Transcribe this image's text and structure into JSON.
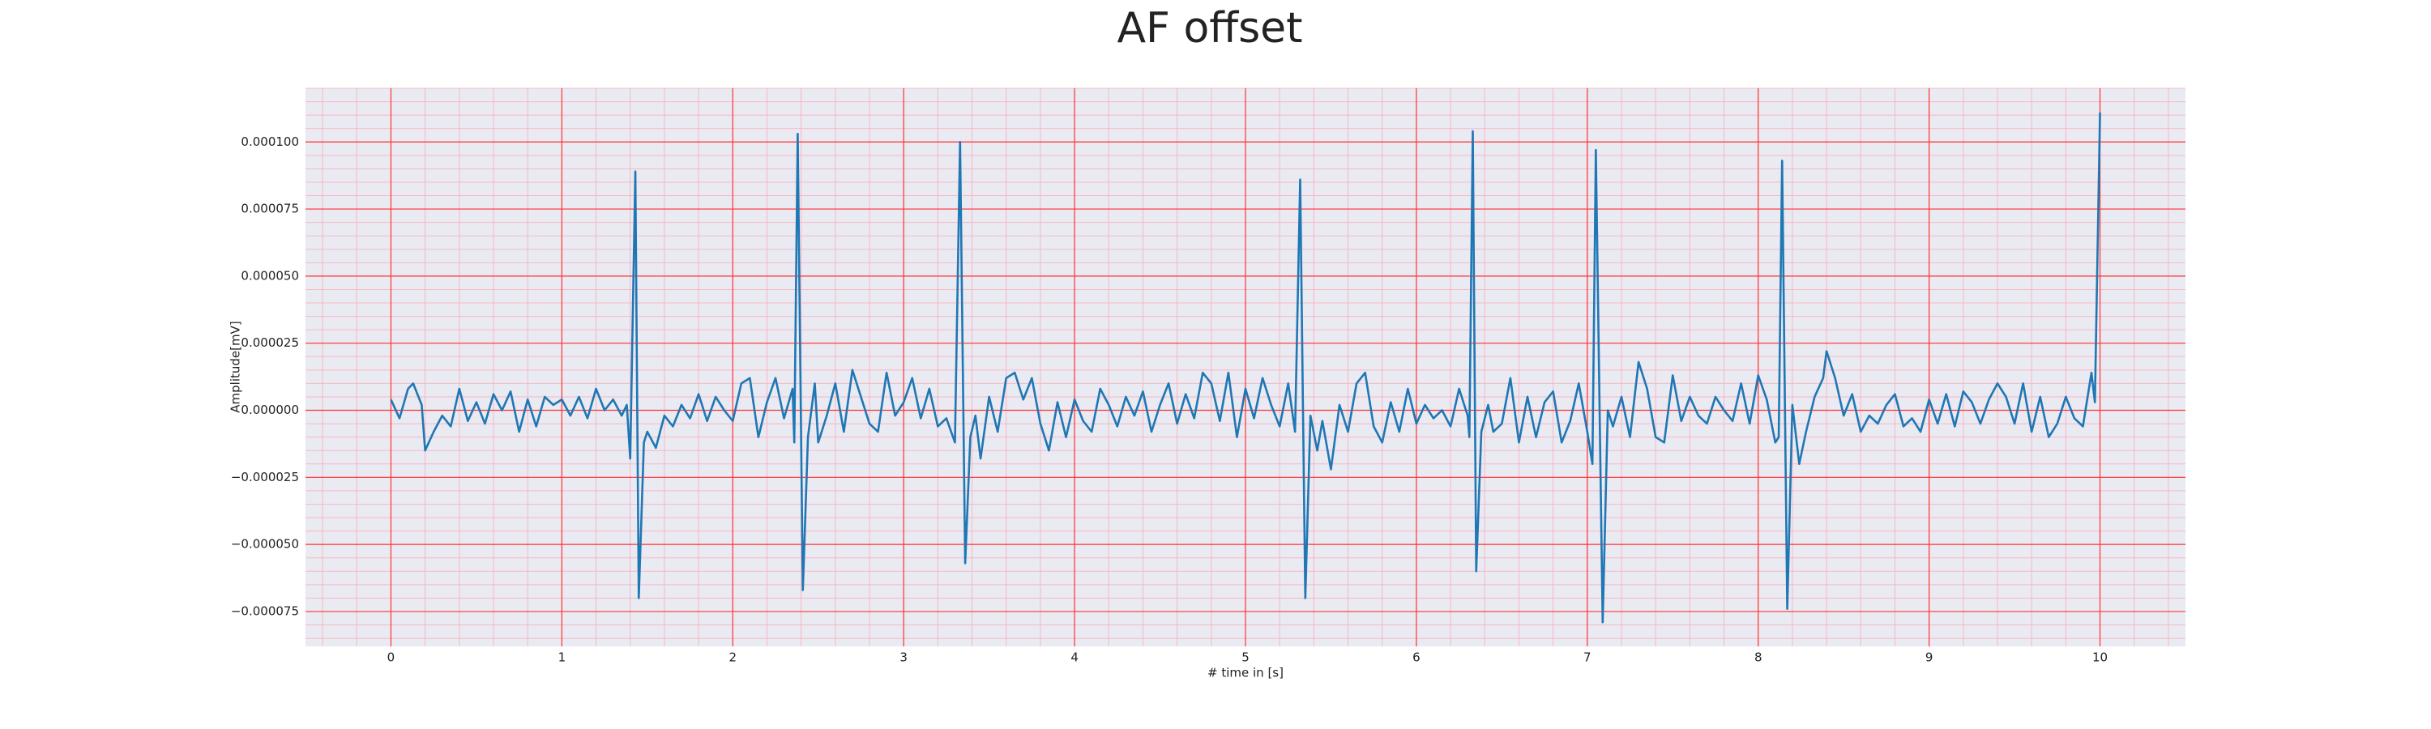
{
  "chart_data": {
    "type": "line",
    "title": "AF offset",
    "xlabel": "# time in [s]",
    "ylabel": "Amplitude[mV]",
    "color": "#1f77b4",
    "grid": true,
    "grid_color": "#ff3333",
    "minor_grid_color": "#f6b8c4",
    "background": "#eaeaf2",
    "xlim": [
      -0.5,
      10.5
    ],
    "ylim": [
      -8.8e-05,
      0.00012
    ],
    "xticks": [
      0,
      1,
      2,
      3,
      4,
      5,
      6,
      7,
      8,
      9,
      10
    ],
    "yticks": [
      {
        "value": -7.5e-05,
        "label": "−0.000075"
      },
      {
        "value": -5e-05,
        "label": "−0.000050"
      },
      {
        "value": -2.5e-05,
        "label": "−0.000025"
      },
      {
        "value": 0,
        "label": "0.000000"
      },
      {
        "value": 2.5e-05,
        "label": "0.000025"
      },
      {
        "value": 5e-05,
        "label": "0.000050"
      },
      {
        "value": 7.5e-05,
        "label": "0.000075"
      },
      {
        "value": 0.0001,
        "label": "0.000100"
      }
    ],
    "xminorticks": [
      -0.4,
      -0.2,
      0,
      0.2,
      0.4,
      0.6,
      0.8,
      1,
      1.2,
      1.4,
      1.6,
      1.8,
      2,
      2.2,
      2.4,
      2.6,
      2.8,
      3,
      3.2,
      3.4,
      3.6,
      3.8,
      4,
      4.2,
      4.4,
      4.6,
      4.8,
      5,
      5.2,
      5.4,
      5.6,
      5.8,
      6,
      6.2,
      6.4,
      6.6,
      6.8,
      7,
      7.2,
      7.4,
      7.6,
      7.8,
      8,
      8.2,
      8.4,
      8.6,
      8.8,
      9,
      9.2,
      9.4,
      9.6,
      9.8,
      10,
      10.2,
      10.4
    ],
    "yminorticks": [
      -8.5e-05,
      -8e-05,
      -7.5e-05,
      -7e-05,
      -6.5e-05,
      -6e-05,
      -5.5e-05,
      -5e-05,
      -4.5e-05,
      -4e-05,
      -3.5e-05,
      -3e-05,
      -2.5e-05,
      -2e-05,
      -1.5e-05,
      -1e-05,
      -5e-06,
      0,
      5e-06,
      1e-05,
      1.5e-05,
      2e-05,
      2.5e-05,
      3e-05,
      3.5e-05,
      4e-05,
      4.5e-05,
      5e-05,
      5.5e-05,
      6e-05,
      6.5e-05,
      7e-05,
      7.5e-05,
      8e-05,
      8.5e-05,
      9e-05,
      9.5e-05,
      0.0001,
      0.000105,
      0.00011,
      0.000115,
      0.00012
    ],
    "x": [
      0,
      0.05,
      0.1,
      0.13,
      0.18,
      0.2,
      0.25,
      0.3,
      0.35,
      0.4,
      0.45,
      0.5,
      0.55,
      0.6,
      0.65,
      0.7,
      0.75,
      0.8,
      0.85,
      0.9,
      0.95,
      1,
      1.05,
      1.1,
      1.15,
      1.2,
      1.25,
      1.3,
      1.35,
      1.38,
      1.4,
      1.43,
      1.45,
      1.48,
      1.5,
      1.55,
      1.6,
      1.65,
      1.7,
      1.75,
      1.8,
      1.85,
      1.9,
      1.95,
      2,
      2.05,
      2.1,
      2.15,
      2.2,
      2.25,
      2.3,
      2.35,
      2.36,
      2.38,
      2.41,
      2.44,
      2.48,
      2.5,
      2.55,
      2.6,
      2.65,
      2.7,
      2.75,
      2.8,
      2.85,
      2.9,
      2.95,
      3,
      3.05,
      3.1,
      3.15,
      3.2,
      3.25,
      3.3,
      3.33,
      3.36,
      3.39,
      3.42,
      3.45,
      3.5,
      3.55,
      3.6,
      3.65,
      3.7,
      3.75,
      3.8,
      3.85,
      3.9,
      3.95,
      4,
      4.05,
      4.1,
      4.15,
      4.2,
      4.25,
      4.3,
      4.35,
      4.4,
      4.45,
      4.5,
      4.55,
      4.6,
      4.65,
      4.7,
      4.75,
      4.8,
      4.85,
      4.9,
      4.95,
      5,
      5.05,
      5.1,
      5.15,
      5.2,
      5.25,
      5.29,
      5.32,
      5.35,
      5.38,
      5.42,
      5.45,
      5.5,
      5.55,
      5.6,
      5.65,
      5.7,
      5.75,
      5.8,
      5.85,
      5.9,
      5.95,
      6,
      6.05,
      6.1,
      6.15,
      6.2,
      6.25,
      6.3,
      6.31,
      6.33,
      6.35,
      6.38,
      6.42,
      6.45,
      6.5,
      6.55,
      6.6,
      6.65,
      6.7,
      6.75,
      6.8,
      6.85,
      6.9,
      6.95,
      7,
      7.03,
      7.05,
      7.09,
      7.12,
      7.15,
      7.2,
      7.25,
      7.3,
      7.35,
      7.4,
      7.45,
      7.5,
      7.55,
      7.6,
      7.65,
      7.7,
      7.75,
      7.8,
      7.85,
      7.9,
      7.95,
      8,
      8.05,
      8.1,
      8.12,
      8.14,
      8.17,
      8.2,
      8.24,
      8.28,
      8.33,
      8.38,
      8.4,
      8.45,
      8.5,
      8.55,
      8.6,
      8.65,
      8.7,
      8.75,
      8.8,
      8.85,
      8.9,
      8.95,
      9,
      9.05,
      9.1,
      9.15,
      9.2,
      9.25,
      9.3,
      9.35,
      9.4,
      9.45,
      9.5,
      9.55,
      9.6,
      9.65,
      9.7,
      9.75,
      9.8,
      9.85,
      9.9,
      9.95,
      9.97,
      10
    ],
    "values": [
      4e-06,
      -3e-06,
      8e-06,
      1e-05,
      2e-06,
      -1.5e-05,
      -8e-06,
      -2e-06,
      -6e-06,
      8e-06,
      -4e-06,
      3e-06,
      -5e-06,
      6e-06,
      0,
      7e-06,
      -8e-06,
      4e-06,
      -6e-06,
      5e-06,
      2e-06,
      4e-06,
      -2e-06,
      5e-06,
      -3e-06,
      8e-06,
      0,
      4e-06,
      -2e-06,
      2e-06,
      -1.8e-05,
      8.9e-05,
      -7e-05,
      -1.2e-05,
      -8e-06,
      -1.4e-05,
      -2e-06,
      -6e-06,
      2e-06,
      -3e-06,
      6e-06,
      -4e-06,
      5e-06,
      0,
      -4e-06,
      1e-05,
      1.2e-05,
      -1e-05,
      3e-06,
      1.2e-05,
      -3e-06,
      8e-06,
      -1.2e-05,
      0.000103,
      -6.7e-05,
      -1e-05,
      1e-05,
      -1.2e-05,
      -2e-06,
      1e-05,
      -8e-06,
      1.5e-05,
      5e-06,
      -5e-06,
      -8e-06,
      1.4e-05,
      -2e-06,
      3e-06,
      1.2e-05,
      -3e-06,
      8e-06,
      -6e-06,
      -3e-06,
      -1.2e-05,
      0.0001,
      -5.7e-05,
      -1e-05,
      -2e-06,
      -1.8e-05,
      5e-06,
      -8e-06,
      1.2e-05,
      1.4e-05,
      4e-06,
      1.2e-05,
      -5e-06,
      -1.5e-05,
      3e-06,
      -1e-05,
      4e-06,
      -4e-06,
      -8e-06,
      8e-06,
      2e-06,
      -6e-06,
      5e-06,
      -2e-06,
      7e-06,
      -8e-06,
      2e-06,
      1e-05,
      -5e-06,
      6e-06,
      -3e-06,
      1.4e-05,
      1e-05,
      -4e-06,
      1.4e-05,
      -1e-05,
      8e-06,
      -3e-06,
      1.2e-05,
      2e-06,
      -6e-06,
      1e-05,
      -8e-06,
      8.6e-05,
      -7e-05,
      -2e-06,
      -1.5e-05,
      -4e-06,
      -2.2e-05,
      2e-06,
      -8e-06,
      1e-05,
      1.4e-05,
      -6e-06,
      -1.2e-05,
      3e-06,
      -8e-06,
      8e-06,
      -5e-06,
      2e-06,
      -3e-06,
      0,
      -6e-06,
      8e-06,
      -2e-06,
      -1e-05,
      0.000104,
      -6e-05,
      -8e-06,
      2e-06,
      -8e-06,
      -5e-06,
      1.2e-05,
      -1.2e-05,
      5e-06,
      -1e-05,
      3e-06,
      7e-06,
      -1.2e-05,
      -4e-06,
      1e-05,
      -8e-06,
      -2e-05,
      9.7e-05,
      -7.9e-05,
      0,
      -6e-06,
      5e-06,
      -1e-05,
      1.8e-05,
      8e-06,
      -1e-05,
      -1.2e-05,
      1.3e-05,
      -4e-06,
      5e-06,
      -2e-06,
      -5e-06,
      5e-06,
      0,
      -4e-06,
      1e-05,
      -5e-06,
      1.3e-05,
      4e-06,
      -1.2e-05,
      -1e-05,
      9.3e-05,
      -7.4e-05,
      2e-06,
      -2e-05,
      -8e-06,
      5e-06,
      1.2e-05,
      2.2e-05,
      1.2e-05,
      -2e-06,
      6e-06,
      -8e-06,
      -2e-06,
      -5e-06,
      2e-06,
      6e-06,
      -6e-06,
      -3e-06,
      -8e-06,
      4e-06,
      -5e-06,
      6e-06,
      -6e-06,
      7e-06,
      3e-06,
      -5e-06,
      4e-06,
      1e-05,
      5e-06,
      -5e-06,
      1e-05,
      -8e-06,
      5e-06,
      -1e-05,
      -5e-06,
      5e-06,
      -3e-06,
      -6e-06,
      1.4e-05,
      3e-06,
      0.000111
    ]
  }
}
